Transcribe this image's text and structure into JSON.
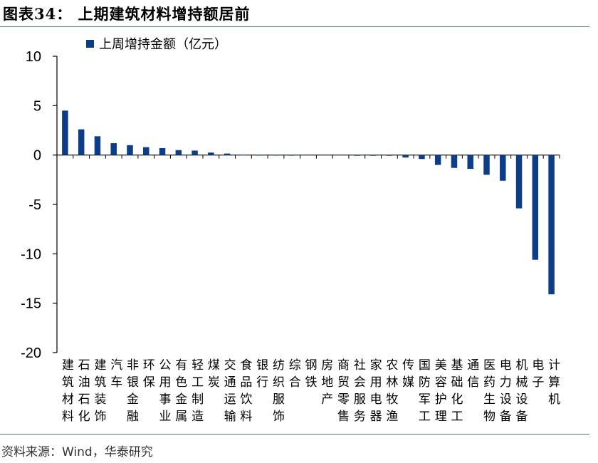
{
  "header": {
    "title": "图表34：  上期建筑材料增持额居前"
  },
  "footer": {
    "source": "资料来源：Wind，华泰研究"
  },
  "colors": {
    "bar": "#0b3d8a",
    "axis": "#000000",
    "rule": "#4a7aa8"
  },
  "chart_data": {
    "type": "bar",
    "title": "",
    "xlabel": "",
    "ylabel": "",
    "ylim": [
      -20,
      10
    ],
    "yticks": [
      10,
      5,
      0,
      -5,
      -10,
      -15,
      -20
    ],
    "legend": {
      "position": "top-left"
    },
    "grid": false,
    "categories": [
      "建筑材料",
      "石油石化",
      "建筑装饰",
      "汽车",
      "非银金融",
      "环保",
      "公用事业",
      "有色金属",
      "轻工制造",
      "煤炭",
      "交通运输",
      "食品饮料",
      "银行",
      "纺织服饰",
      "综合",
      "钢铁",
      "房地产",
      "商贸零售",
      "社会服务",
      "家用电器",
      "农林牧渔",
      "传媒",
      "国防军工",
      "美容护理",
      "基础化工",
      "通信",
      "医药生物",
      "电力设备",
      "机械设备",
      "电子",
      "计算机"
    ],
    "series": [
      {
        "name": "上周增持金额（亿元）",
        "values": [
          4.5,
          2.6,
          1.9,
          1.2,
          1.0,
          0.8,
          0.7,
          0.5,
          0.45,
          0.25,
          0.15,
          0.05,
          0.02,
          0.02,
          0.01,
          0.0,
          0.0,
          0.0,
          -0.01,
          -0.02,
          -0.05,
          -0.25,
          -0.4,
          -1.0,
          -1.3,
          -1.4,
          -2.0,
          -2.6,
          -5.4,
          -10.6,
          -14.1
        ]
      }
    ]
  }
}
